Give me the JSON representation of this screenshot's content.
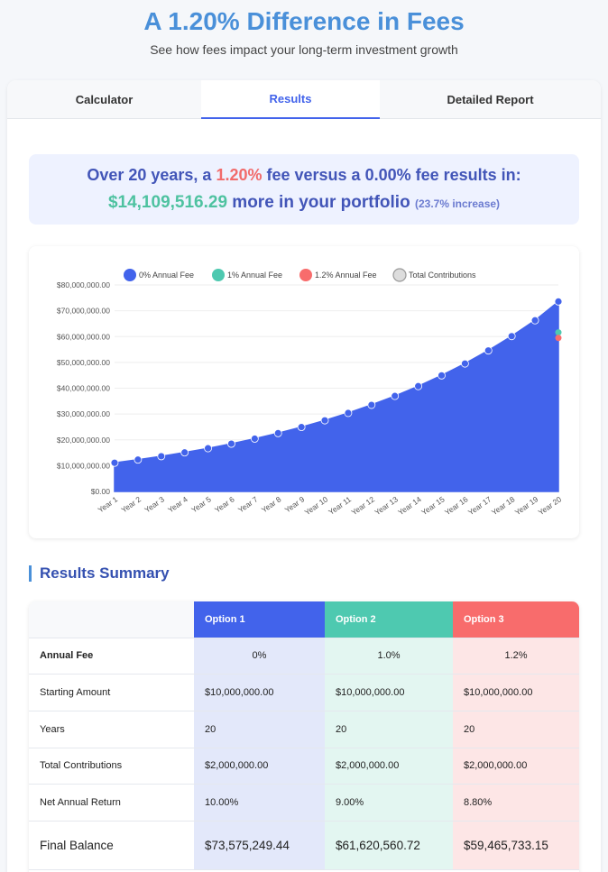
{
  "header": {
    "title": "A 1.20% Difference in Fees",
    "subtitle": "See how fees impact your long-term investment growth"
  },
  "tabs": [
    {
      "label": "Calculator"
    },
    {
      "label": "Results"
    },
    {
      "label": "Detailed Report"
    }
  ],
  "banner": {
    "line1_pre": "Over 20 years, a ",
    "fee_high": "1.20%",
    "line1_mid": " fee versus a ",
    "fee_low": "0.00%",
    "line1_post": " fee results in:",
    "difference": "$14,109,516.29",
    "line2_text": " more in your portfolio ",
    "increase": "(23.7% increase)"
  },
  "colors": {
    "option1": "#4263eb",
    "option2": "#4ec9b0",
    "option3": "#f86c6c",
    "accent": "#4a90d9"
  },
  "chart_data": {
    "type": "area",
    "categories": [
      "Year 1",
      "Year 2",
      "Year 3",
      "Year 4",
      "Year 5",
      "Year 6",
      "Year 7",
      "Year 8",
      "Year 9",
      "Year 10",
      "Year 11",
      "Year 12",
      "Year 13",
      "Year 14",
      "Year 15",
      "Year 16",
      "Year 17",
      "Year 18",
      "Year 19",
      "Year 20"
    ],
    "y_ticks": [
      "$0.00",
      "$10,000,000.00",
      "$20,000,000.00",
      "$30,000,000.00",
      "$40,000,000.00",
      "$50,000,000.00",
      "$60,000,000.00",
      "$70,000,000.00",
      "$80,000,000.00"
    ],
    "ylim": [
      0,
      80000000
    ],
    "legend": [
      "0% Annual Fee",
      "1% Annual Fee",
      "1.2% Annual Fee",
      "Total Contributions"
    ],
    "legend_position": "top",
    "series": [
      {
        "name": "0% Annual Fee",
        "color": "#4263eb",
        "values": [
          11100000,
          12310000,
          13641000,
          15105000,
          16716000,
          18487000,
          20436000,
          22580000,
          24938000,
          27531000,
          30385000,
          33523000,
          36976000,
          40773000,
          44950000,
          49545000,
          54600000,
          60160000,
          66276000,
          73575249
        ]
      },
      {
        "name": "1% Annual Fee",
        "color": "#4ec9b0",
        "final": 61620560.72
      },
      {
        "name": "1.2% Annual Fee",
        "color": "#f86c6c",
        "final": 59465733.15
      },
      {
        "name": "Total Contributions",
        "color": "#cccccc"
      }
    ]
  },
  "summary": {
    "title": "Results Summary",
    "headers": [
      "",
      "Option 1",
      "Option 2",
      "Option 3"
    ],
    "rows": [
      {
        "label": "Annual Fee",
        "values": [
          "0%",
          "1.0%",
          "1.2%"
        ]
      },
      {
        "label": "Starting Amount",
        "values": [
          "$10,000,000.00",
          "$10,000,000.00",
          "$10,000,000.00"
        ]
      },
      {
        "label": "Years",
        "values": [
          "20",
          "20",
          "20"
        ]
      },
      {
        "label": "Total Contributions",
        "values": [
          "$2,000,000.00",
          "$2,000,000.00",
          "$2,000,000.00"
        ]
      },
      {
        "label": "Net Annual Return",
        "values": [
          "10.00%",
          "9.00%",
          "8.80%"
        ]
      },
      {
        "label": "Final Balance",
        "values": [
          "$73,575,249.44",
          "$61,620,560.72",
          "$59,465,733.15"
        ]
      }
    ]
  }
}
